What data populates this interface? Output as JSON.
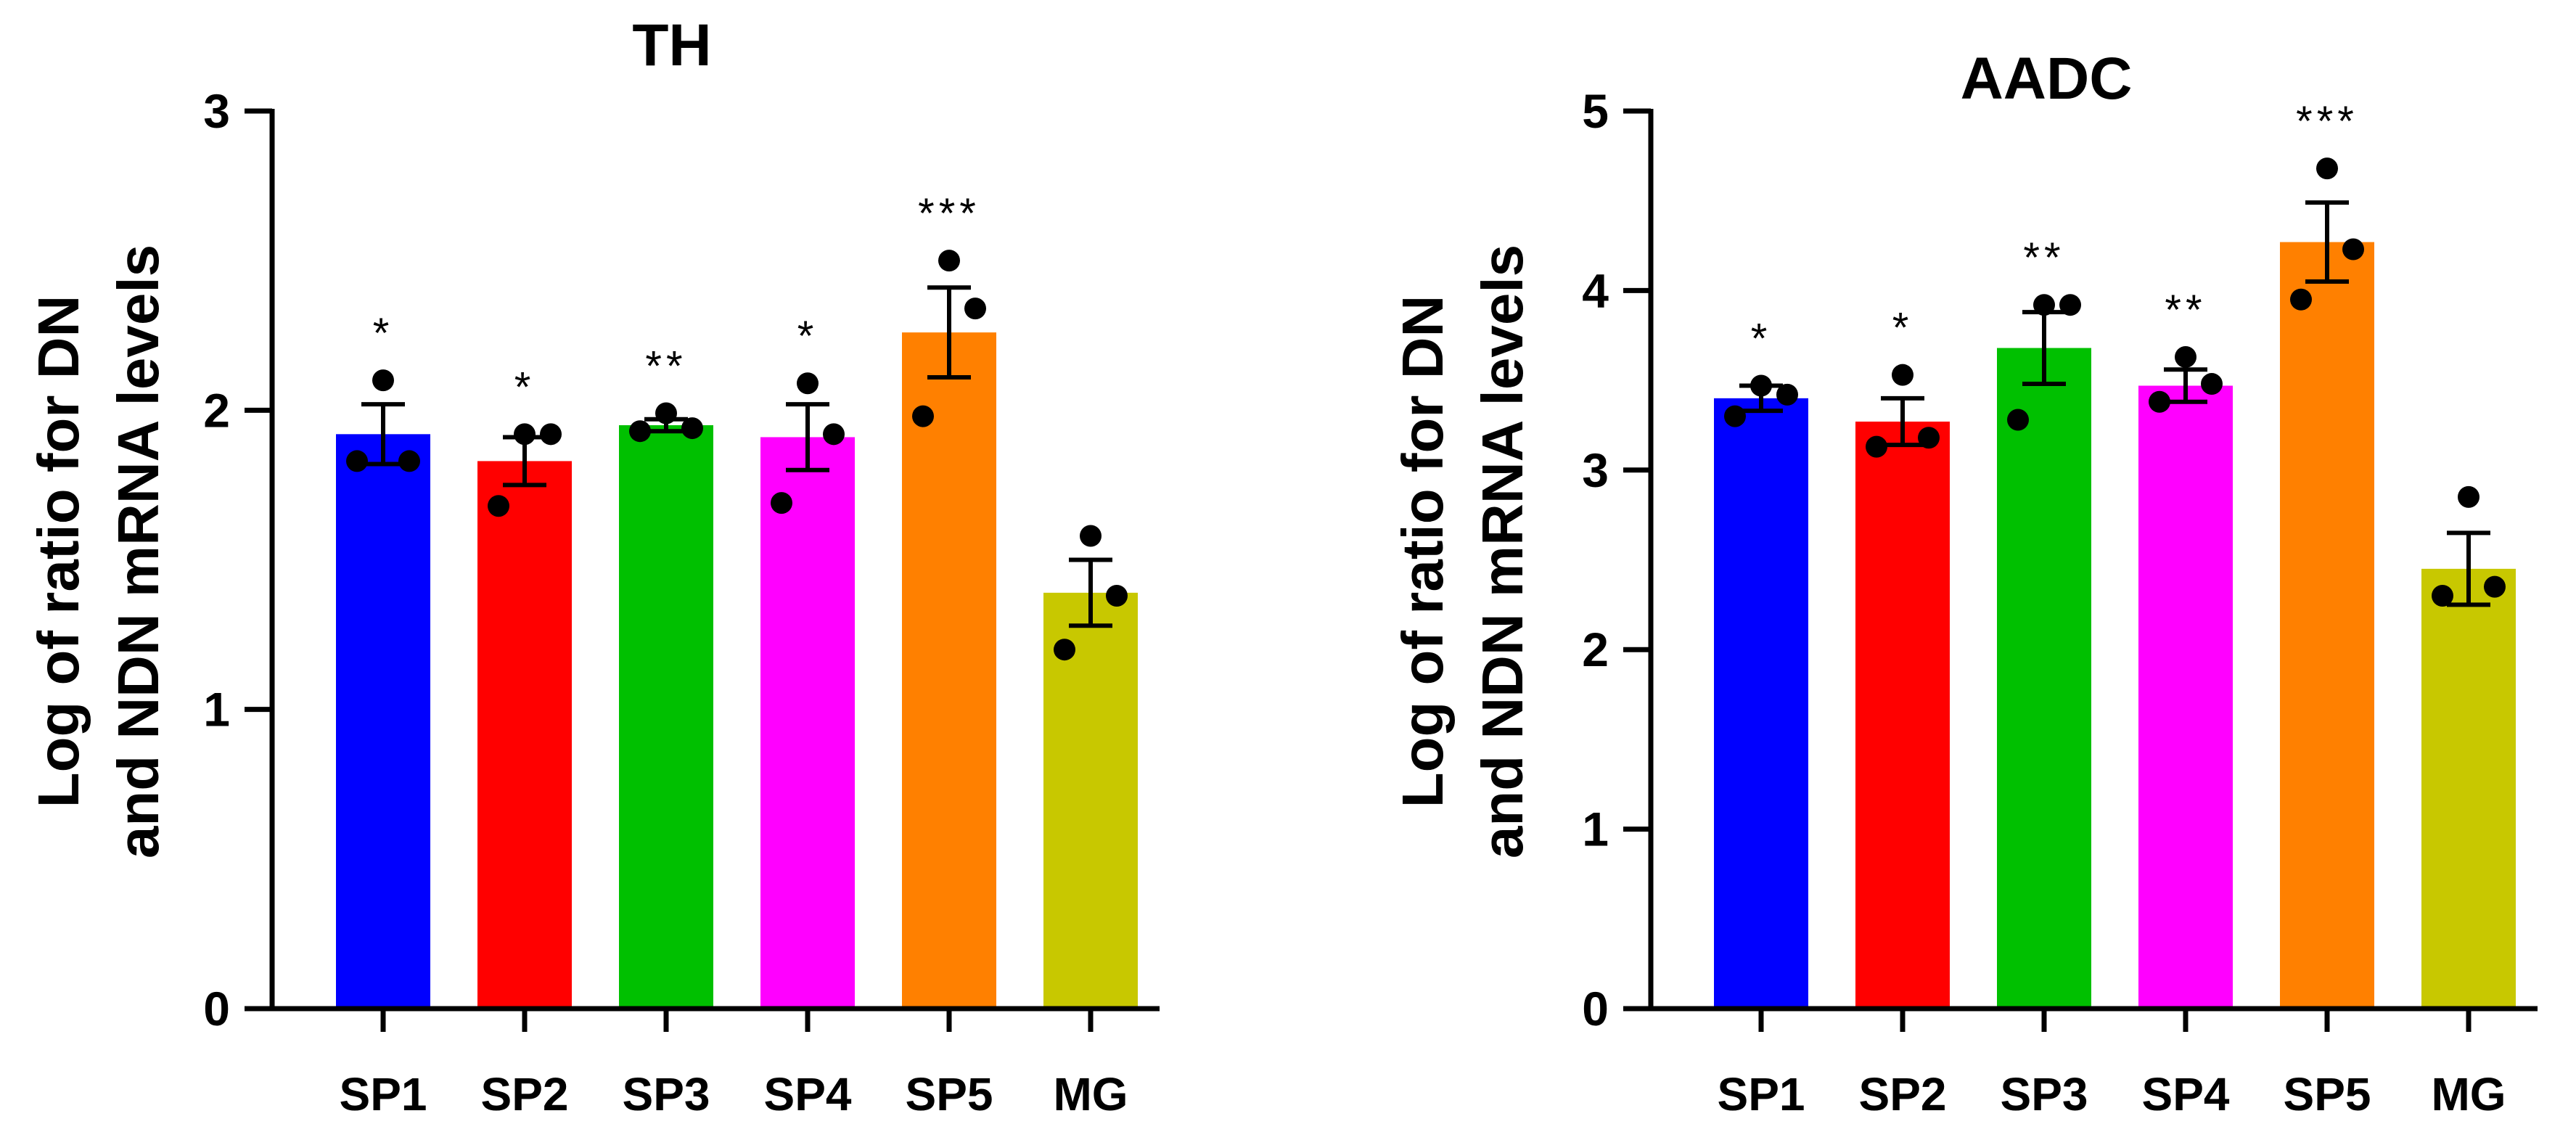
{
  "chart_data": [
    {
      "type": "bar",
      "title": "TH",
      "xlabel": "",
      "ylabel": [
        "Log of ratio for DN",
        "and NDN mRNA levels"
      ],
      "ylim": [
        0,
        3
      ],
      "yticks": [
        0,
        1,
        2,
        3
      ],
      "categories": [
        "SP1",
        "SP2",
        "SP3",
        "SP4",
        "SP5",
        "MG"
      ],
      "values": [
        1.92,
        1.83,
        1.95,
        1.91,
        2.26,
        1.39
      ],
      "errors": [
        0.1,
        0.08,
        0.02,
        0.11,
        0.15,
        0.11
      ],
      "points": [
        [
          2.1,
          1.83,
          1.83
        ],
        [
          1.92,
          1.92,
          1.68
        ],
        [
          1.99,
          1.94,
          1.93
        ],
        [
          2.09,
          1.92,
          1.69
        ],
        [
          2.5,
          2.34,
          1.98
        ],
        [
          1.58,
          1.38,
          1.2
        ]
      ],
      "significance": [
        "*",
        "*",
        "**",
        "*",
        "***",
        ""
      ],
      "colors": [
        "#0000ff",
        "#ff0000",
        "#00c000",
        "#ff00ff",
        "#ff8000",
        "#c8c800"
      ]
    },
    {
      "type": "bar",
      "title": "AADC",
      "xlabel": "",
      "ylabel": [
        "Log of ratio for DN",
        "and NDN mRNA levels"
      ],
      "ylim": [
        0,
        5
      ],
      "yticks": [
        0,
        1,
        2,
        3,
        4,
        5
      ],
      "categories": [
        "SP1",
        "SP2",
        "SP3",
        "SP4",
        "SP5",
        "MG"
      ],
      "values": [
        3.4,
        3.27,
        3.68,
        3.47,
        4.27,
        2.45
      ],
      "errors": [
        0.07,
        0.13,
        0.2,
        0.09,
        0.22,
        0.2
      ],
      "points": [
        [
          3.47,
          3.42,
          3.3
        ],
        [
          3.53,
          3.18,
          3.13
        ],
        [
          3.92,
          3.92,
          3.28
        ],
        [
          3.63,
          3.48,
          3.38
        ],
        [
          4.68,
          4.23,
          3.95
        ],
        [
          2.85,
          2.35,
          2.3
        ]
      ],
      "significance": [
        "*",
        "*",
        "**",
        "**",
        "***",
        ""
      ],
      "colors": [
        "#0000ff",
        "#ff0000",
        "#00c000",
        "#ff00ff",
        "#ff8000",
        "#c8c800"
      ]
    }
  ]
}
